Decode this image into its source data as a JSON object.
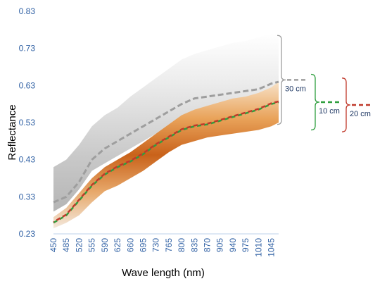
{
  "chart_data": {
    "type": "area",
    "title": "",
    "xlabel": "Wave length (nm)",
    "ylabel": "Reflectance",
    "xlim": [
      450,
      1065
    ],
    "ylim": [
      0.23,
      0.83
    ],
    "x_ticks": [
      "450",
      "485",
      "520",
      "555",
      "590",
      "625",
      "660",
      "695",
      "730",
      "765",
      "800",
      "835",
      "870",
      "905",
      "940",
      "975",
      "1010",
      "1045"
    ],
    "y_ticks": [
      "0.23",
      "0.33",
      "0.43",
      "0.53",
      "0.63",
      "0.73",
      "0.83"
    ],
    "grid": false,
    "x": [
      450,
      485,
      520,
      555,
      590,
      625,
      660,
      695,
      730,
      765,
      800,
      835,
      870,
      905,
      940,
      975,
      1010,
      1045,
      1065
    ],
    "envelopes": [
      {
        "name": "30 cm",
        "color": "#a8a8a8",
        "upper": [
          0.41,
          0.43,
          0.47,
          0.52,
          0.55,
          0.57,
          0.6,
          0.625,
          0.65,
          0.675,
          0.7,
          0.715,
          0.725,
          0.735,
          0.745,
          0.75,
          0.76,
          0.77,
          0.77
        ],
        "lower": [
          0.29,
          0.31,
          0.35,
          0.4,
          0.42,
          0.44,
          0.46,
          0.48,
          0.5,
          0.52,
          0.54,
          0.55,
          0.555,
          0.56,
          0.57,
          0.575,
          0.58,
          0.59,
          0.6
        ]
      },
      {
        "name": "10 cm / 20 cm",
        "color": "#d47a2a",
        "upper": [
          0.275,
          0.3,
          0.34,
          0.38,
          0.41,
          0.43,
          0.45,
          0.475,
          0.5,
          0.525,
          0.55,
          0.565,
          0.575,
          0.585,
          0.595,
          0.6,
          0.61,
          0.625,
          0.64
        ],
        "lower": [
          0.245,
          0.26,
          0.28,
          0.315,
          0.345,
          0.36,
          0.38,
          0.4,
          0.425,
          0.45,
          0.47,
          0.48,
          0.49,
          0.495,
          0.5,
          0.505,
          0.51,
          0.52,
          0.53
        ]
      }
    ],
    "series": [
      {
        "name": "30 cm",
        "color": "#9e9e9e",
        "values": [
          0.315,
          0.33,
          0.37,
          0.43,
          0.46,
          0.48,
          0.5,
          0.52,
          0.54,
          0.56,
          0.58,
          0.595,
          0.6,
          0.605,
          0.61,
          0.615,
          0.62,
          0.635,
          0.64
        ]
      },
      {
        "name": "10 cm",
        "color": "#2e9e3e",
        "values": [
          0.26,
          0.28,
          0.32,
          0.36,
          0.39,
          0.41,
          0.425,
          0.445,
          0.47,
          0.49,
          0.51,
          0.52,
          0.525,
          0.535,
          0.545,
          0.555,
          0.565,
          0.58,
          0.585
        ]
      },
      {
        "name": "20 cm",
        "color": "#c0392b",
        "values": [
          0.262,
          0.282,
          0.322,
          0.362,
          0.392,
          0.412,
          0.427,
          0.447,
          0.472,
          0.492,
          0.512,
          0.522,
          0.527,
          0.537,
          0.547,
          0.557,
          0.567,
          0.582,
          0.587
        ]
      }
    ],
    "legend": [
      {
        "label": "30 cm",
        "color": "#9e9e9e",
        "bracket": [
          0.525,
          0.765
        ]
      },
      {
        "label": "10 cm",
        "color": "#2e9e3e",
        "bracket": [
          0.51,
          0.66
        ]
      },
      {
        "label": "20 cm",
        "color": "#c0392b",
        "bracket": [
          0.505,
          0.65
        ]
      }
    ],
    "legend_placement": "right"
  }
}
